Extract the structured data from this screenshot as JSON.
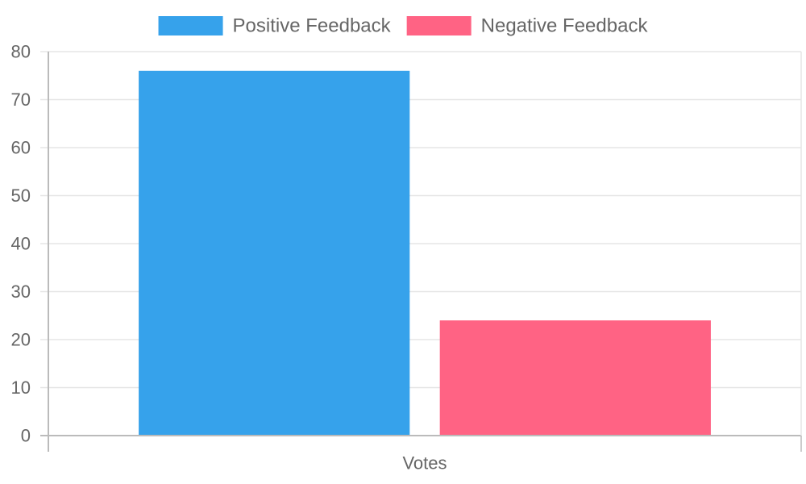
{
  "chart_data": {
    "type": "bar",
    "title": "",
    "xlabel": "",
    "ylabel": "",
    "categories": [
      "Votes"
    ],
    "series": [
      {
        "name": "Positive Feedback",
        "values": [
          76
        ],
        "color": "#36a2eb"
      },
      {
        "name": "Negative Feedback",
        "values": [
          24
        ],
        "color": "#ff6384"
      }
    ],
    "ylim": [
      0,
      80
    ],
    "yticks": [
      0,
      10,
      20,
      30,
      40,
      50,
      60,
      70,
      80
    ],
    "grid": true,
    "legend_position": "top"
  }
}
